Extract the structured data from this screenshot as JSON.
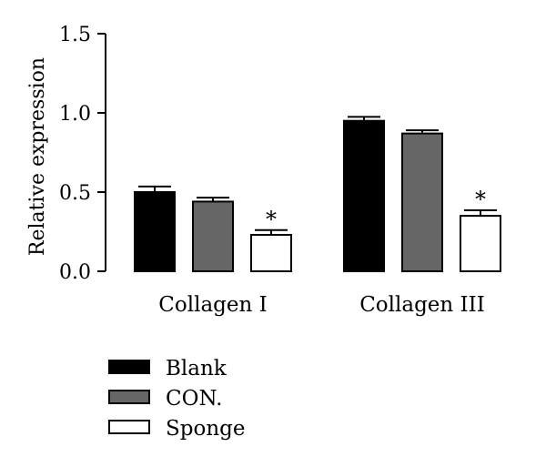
{
  "chart_data": {
    "type": "bar",
    "categories": [
      "Collagen I",
      "Collagen III"
    ],
    "ylabel": "Relative expression",
    "ylim": [
      0,
      1.5
    ],
    "yticks": [
      "0.0",
      "0.5",
      "1.0",
      "1.5"
    ],
    "series": [
      {
        "name": "Blank",
        "values": [
          0.5,
          0.95
        ],
        "errors": [
          0.035,
          0.025
        ],
        "color": "#000000"
      },
      {
        "name": "CON.",
        "values": [
          0.44,
          0.87
        ],
        "errors": [
          0.025,
          0.02
        ],
        "color": "#666666"
      },
      {
        "name": "Sponge",
        "values": [
          0.23,
          0.35
        ],
        "errors": [
          0.03,
          0.035
        ],
        "color": "#ffffff"
      }
    ],
    "annotations": [
      {
        "category": 0,
        "series": 2,
        "text": "*"
      },
      {
        "category": 1,
        "series": 2,
        "text": "*"
      }
    ],
    "legend_position": "bottom-left"
  }
}
